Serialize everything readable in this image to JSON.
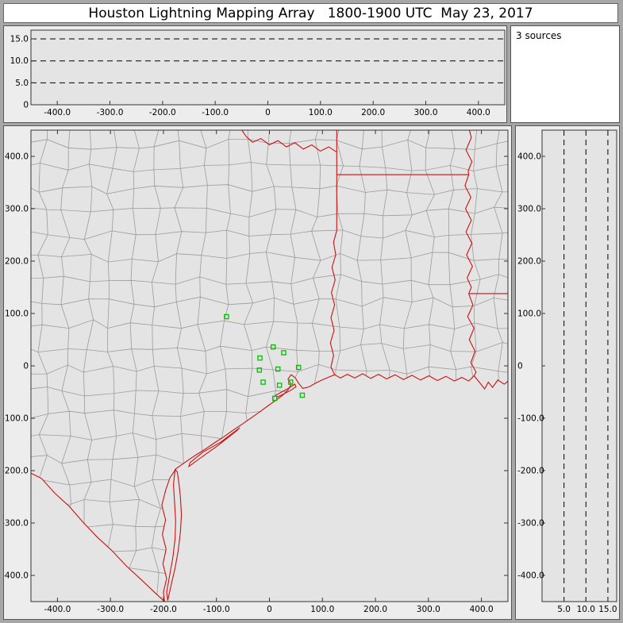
{
  "window": {
    "title": "Houston Lightning Mapping Array   1800-1900 UTC  May 23, 2017"
  },
  "histogram": {
    "label": "3 sources"
  },
  "colors": {
    "county_line": "#9b9b9b",
    "state_line": "#cc1111",
    "station": "#00c000",
    "dash_line": "#000000",
    "plot_bg": "#e4e4e4",
    "panel_bg": "#ededed",
    "frame": "#a7a7a7",
    "title_bg": "#ffffff"
  },
  "chart_data": {
    "type": "scatter",
    "title": "Houston Lightning Mapping Array   1800-1900 UTC  May 23, 2017",
    "panels": {
      "alt_vs_ew": {
        "x_range_km": [
          -450,
          450
        ],
        "alt_range_km": [
          0,
          17
        ],
        "alt_tick_values": [
          15,
          10,
          5,
          0
        ],
        "alt_tick_labels": [
          "15.0",
          "10.0",
          "5.0",
          "0"
        ],
        "dashed_altitudes_km": [
          5,
          10,
          15
        ],
        "x_tick_values": [
          -400,
          -300,
          -200,
          -100,
          0,
          100,
          200,
          300,
          400
        ],
        "x_tick_labels": [
          "-400.0",
          "-300.0",
          "-200.0",
          "-100.0",
          "0",
          "100.0",
          "200.0",
          "300.0",
          "400.0"
        ]
      },
      "plan_view": {
        "x_range_km": [
          -450,
          450
        ],
        "y_range_km": [
          -450,
          450
        ],
        "x_tick_values": [
          -400,
          -300,
          -200,
          -100,
          0,
          100,
          200,
          300,
          400
        ],
        "x_tick_labels": [
          "-400.0",
          "-300.0",
          "-200.0",
          "-100.0",
          "0",
          "100.0",
          "200.0",
          "300.0",
          "400.0"
        ],
        "y_tick_values": [
          400,
          300,
          200,
          100,
          0,
          -100,
          -200,
          -300,
          -400
        ],
        "y_tick_labels": [
          "400.0",
          "300.0",
          "200.0",
          "100.0",
          "0",
          "-100.0",
          "-200.0",
          "-300.0",
          "-400.0"
        ],
        "stations_km": [
          [
            -81,
            94
          ],
          [
            7,
            36
          ],
          [
            27,
            25
          ],
          [
            -18,
            15
          ],
          [
            -19,
            -8
          ],
          [
            16,
            -6
          ],
          [
            55,
            -3
          ],
          [
            -12,
            -31
          ],
          [
            19,
            -37
          ],
          [
            40,
            -31
          ],
          [
            10,
            -62
          ],
          [
            62,
            -56
          ]
        ]
      },
      "alt_vs_ns": {
        "alt_range_km": [
          0,
          17
        ],
        "alt_tick_values": [
          5,
          10,
          15
        ],
        "alt_tick_labels": [
          "5.0",
          "10.0",
          "15.0"
        ],
        "dashed_altitudes_km": [
          5,
          10,
          15
        ],
        "y_tick_values": [
          400,
          300,
          200,
          100,
          0,
          -100,
          -200,
          -300,
          -400
        ],
        "y_tick_labels": [
          "400.0",
          "300.0",
          "200.0",
          "100.0",
          "0",
          "-100.0",
          "-200.0",
          "-300.0",
          "-400.0"
        ]
      },
      "sources_histogram": {
        "label": "3 sources"
      }
    }
  }
}
